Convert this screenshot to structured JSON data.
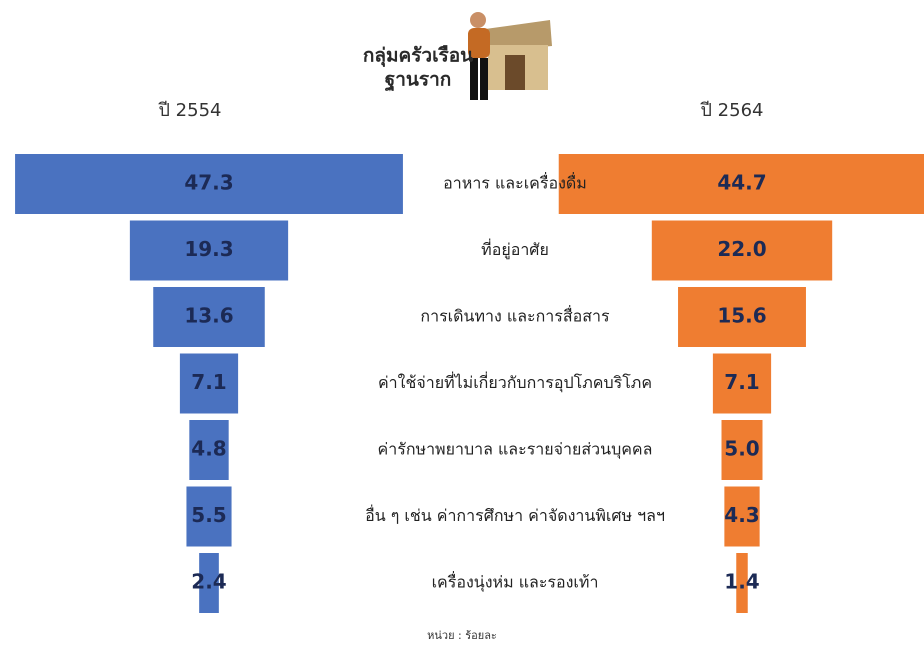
{
  "chart_data": {
    "type": "butterfly",
    "title": [
      "กลุ่มครัวเรือน",
      "ฐานราก"
    ],
    "categories": [
      "อาหาร และเครื่องดื่ม",
      "ที่อยู่อาศัย",
      "การเดินทาง และการสื่อสาร",
      "ค่าใช้จ่ายที่ไม่เกี่ยวกับการอุปโภคบริโภค",
      "ค่ารักษาพยาบาล และรายจ่ายส่วนบุคคล",
      "อื่น ๆ เช่น ค่าการศึกษา ค่าจัดงานพิเศษ ฯลฯ",
      "เครื่องนุ่งห่ม และรองเท้า"
    ],
    "series": [
      {
        "name": "ปี 2554",
        "color": "#4a72c0",
        "values": [
          47.3,
          19.3,
          13.6,
          7.1,
          4.8,
          5.5,
          2.4
        ],
        "value_labels": [
          "47.3",
          "19.3",
          "13.6",
          "7.1",
          "4.8",
          "5.5",
          "2.4"
        ]
      },
      {
        "name": "ปี 2564",
        "color": "#ef7d31",
        "values": [
          44.7,
          22,
          15.6,
          7.1,
          5,
          4.3,
          1.4
        ],
        "value_labels": [
          "44.7",
          "22.0",
          "15.6",
          "7.1",
          "5.0",
          "4.3",
          "1.4"
        ]
      }
    ],
    "note": "หน่วย : ร้อยละ"
  }
}
